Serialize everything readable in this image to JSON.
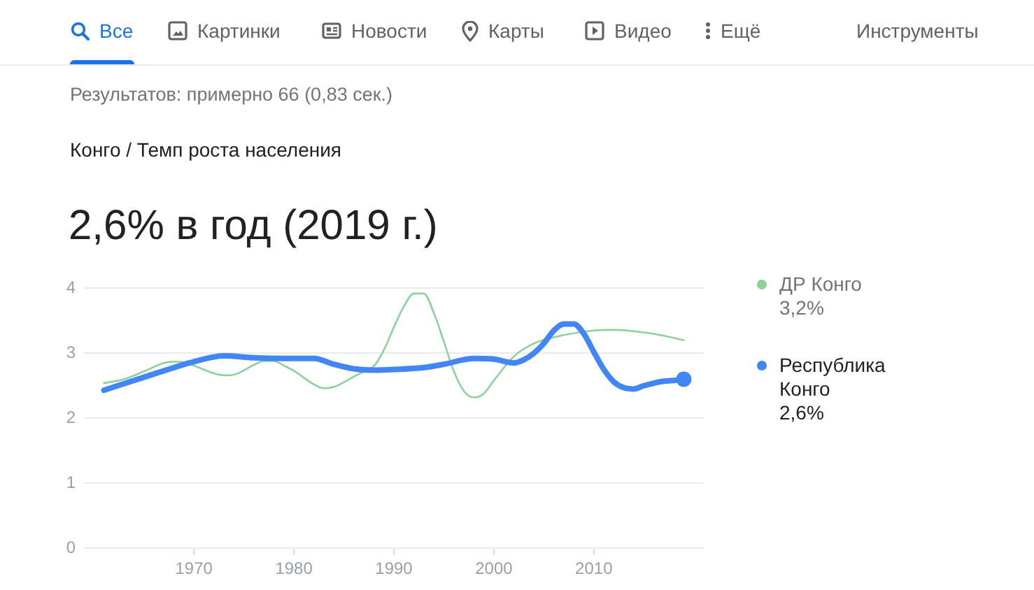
{
  "chart_data": {
    "type": "line",
    "title": "2,6% в год (2019 г.)",
    "subtitle": "Конго / Темп роста населения",
    "annotations": [
      "Все",
      "Картинки",
      "Новости",
      "Карты",
      "Видео",
      "Ещё",
      "Инструменты",
      "Результатов: примерно 66 (0,83 сек.)",
      "3,2%",
      "2,6%"
    ],
    "series": [
      {
        "name": "ДР Конго",
        "color": "#8fd19e",
        "x": [
          1961,
          1963,
          1965,
          1967,
          1968,
          1969,
          1970,
          1972,
          1973,
          1974,
          1976,
          1977,
          1978,
          1979,
          1980,
          1982,
          1983,
          1984,
          1986,
          1987,
          1988,
          1989,
          1990,
          1991,
          1992,
          1993,
          1994,
          1995,
          1996,
          1997,
          1998,
          1999,
          2000,
          2002,
          2004,
          2007,
          2010,
          2012,
          2015,
          2017,
          2019
        ],
        "values": [
          2.54,
          2.6,
          2.72,
          2.85,
          2.87,
          2.86,
          2.81,
          2.69,
          2.66,
          2.67,
          2.82,
          2.88,
          2.88,
          2.81,
          2.73,
          2.52,
          2.46,
          2.48,
          2.64,
          2.72,
          2.8,
          3.05,
          3.4,
          3.72,
          3.92,
          3.92,
          3.62,
          3.18,
          2.72,
          2.42,
          2.32,
          2.38,
          2.58,
          2.95,
          3.15,
          3.28,
          3.35,
          3.36,
          3.32,
          3.27,
          3.2
        ]
      },
      {
        "name": "Республика Конго",
        "color": "#4285f4",
        "x": [
          1961,
          1964,
          1967,
          1970,
          1973,
          1976,
          1979,
          1982,
          1984,
          1986,
          1988,
          1990,
          1993,
          1995,
          1998,
          2000,
          2002,
          2003,
          2004,
          2005,
          2006,
          2007,
          2008,
          2009,
          2010,
          2011,
          2012,
          2013,
          2014,
          2015,
          2016,
          2017,
          2018,
          2019
        ],
        "values": [
          2.43,
          2.58,
          2.73,
          2.87,
          2.96,
          2.93,
          2.92,
          2.92,
          2.83,
          2.76,
          2.74,
          2.75,
          2.78,
          2.83,
          2.92,
          2.91,
          2.85,
          2.9,
          3.0,
          3.15,
          3.35,
          3.45,
          3.45,
          3.3,
          3.02,
          2.75,
          2.56,
          2.47,
          2.45,
          2.5,
          2.54,
          2.57,
          2.58,
          2.6
        ]
      },
      {
        "type": "scatter",
        "color": "#4285f4",
        "x": [
          2019
        ],
        "values": [
          2.6
        ]
      }
    ],
    "xlim": [
      1959,
      2021
    ],
    "xticks": [
      1970,
      1980,
      1990,
      2000,
      2010
    ],
    "ylim": [
      0,
      4
    ],
    "yticks": [
      0,
      1,
      2,
      3,
      4
    ],
    "grid": "y",
    "legend": "right"
  }
}
